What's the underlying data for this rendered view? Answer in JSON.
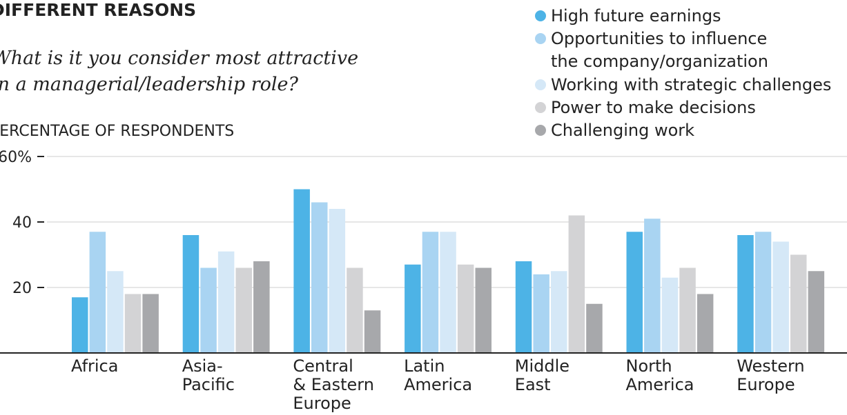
{
  "chart_data": {
    "type": "bar",
    "title": "DIFFERENT REASONS",
    "subtitle": "What is it you consider most attractive\nin a managerial/leadership role?",
    "y_label": "PERCENTAGE OF RESPONDENTS",
    "categories": [
      "Africa",
      "Asia-\nPacific",
      "Central\n& Eastern\nEurope",
      "Latin\nAmerica",
      "Middle\nEast",
      "North\nAmerica",
      "Western\nEurope"
    ],
    "series": [
      {
        "name": "High future earnings",
        "color": "#4db3e6",
        "values": [
          17,
          36,
          50,
          27,
          28,
          37,
          36
        ]
      },
      {
        "name": "Opportunities to influence\nthe company/organization",
        "color": "#a9d4f2",
        "values": [
          37,
          26,
          46,
          37,
          24,
          41,
          37
        ]
      },
      {
        "name": "Working with strategic challenges",
        "color": "#d5e8f7",
        "values": [
          25,
          31,
          44,
          37,
          25,
          23,
          34
        ]
      },
      {
        "name": "Power to make decisions",
        "color": "#d3d3d5",
        "values": [
          18,
          26,
          26,
          27,
          42,
          26,
          30
        ]
      },
      {
        "name": "Challenging work",
        "color": "#a7a8ab",
        "values": [
          18,
          28,
          13,
          26,
          15,
          18,
          25
        ]
      }
    ],
    "ylim": [
      0,
      60
    ],
    "yticks": [
      20,
      40,
      {
        "value": 60,
        "label": "60%"
      }
    ],
    "grid": true,
    "legend": "top-right"
  }
}
